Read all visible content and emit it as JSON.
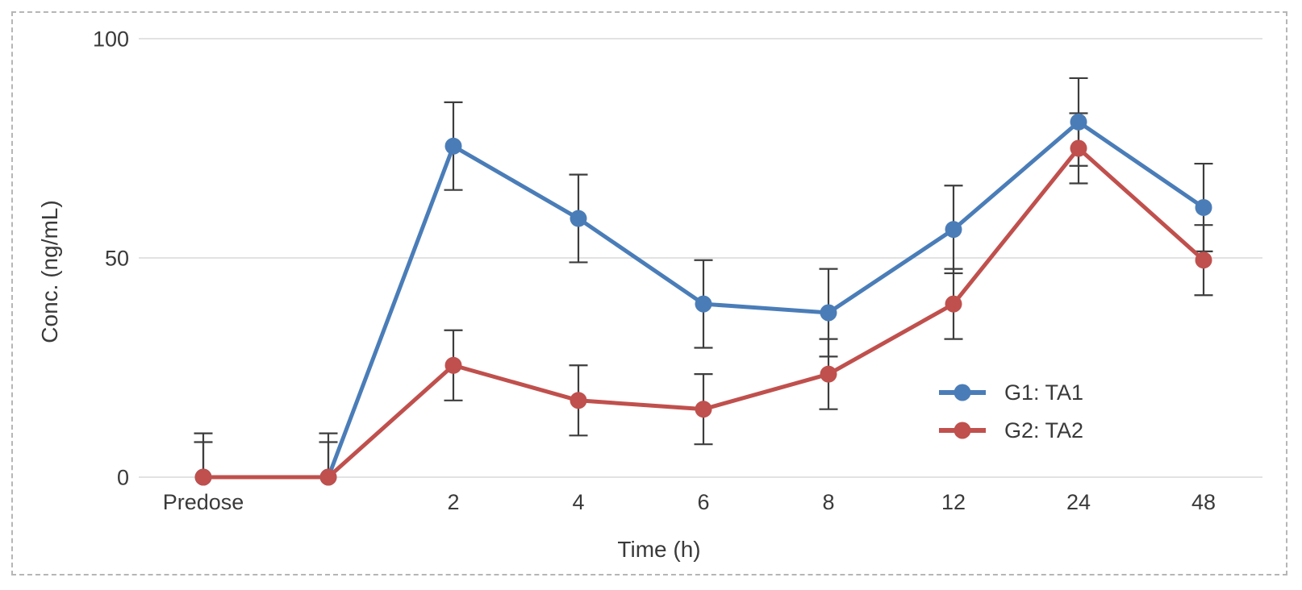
{
  "figure": {
    "background": "#ffffff",
    "border_color": "#b6b6b6",
    "text_color": "#3a3a3a",
    "grid_color": "#d9d9d9"
  },
  "chart_data": {
    "type": "line",
    "title": "",
    "xlabel": "Time (h)",
    "ylabel": "Conc. (ng/mL)",
    "categories": [
      "Predose",
      "",
      "2",
      "4",
      "6",
      "8",
      "12",
      "24",
      "48"
    ],
    "yticks": [
      0,
      50,
      100
    ],
    "ylim": [
      0,
      100
    ],
    "grid": "horizontal",
    "legend_position": "inside-right",
    "error_bar_color": "#3d3d3d",
    "series": [
      {
        "name": "G1: TA1",
        "color": "#4a7db8",
        "values": [
          0,
          0,
          75.5,
          59,
          39.5,
          37.5,
          56.5,
          81,
          61.5
        ],
        "error": 10
      },
      {
        "name": "G2: TA2",
        "color": "#c0504d",
        "values": [
          0,
          0,
          25.5,
          17.5,
          15.5,
          23.5,
          39.5,
          75,
          49.5
        ],
        "error": 8
      }
    ]
  }
}
